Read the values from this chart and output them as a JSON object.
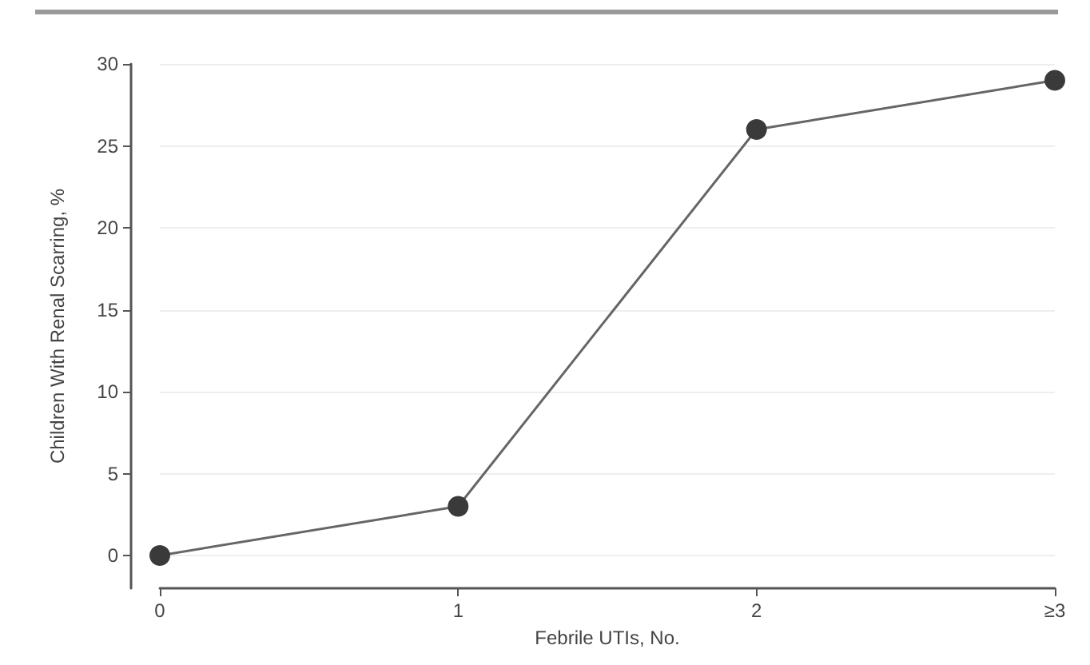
{
  "chart_data": {
    "type": "line",
    "categories": [
      "0",
      "1",
      "2",
      "≥3"
    ],
    "series": [
      {
        "color": "#3a3a3a",
        "values": [
          0,
          3,
          26,
          29
        ]
      }
    ],
    "xlabel": "Febrile UTIs, No.",
    "ylabel": "Children With Renal Scarring, %",
    "ylim": [
      -2,
      30
    ],
    "yticks": [
      0,
      5,
      10,
      15,
      20,
      25,
      30
    ],
    "grid": "y",
    "marker": "circle",
    "line_style": "solid"
  }
}
